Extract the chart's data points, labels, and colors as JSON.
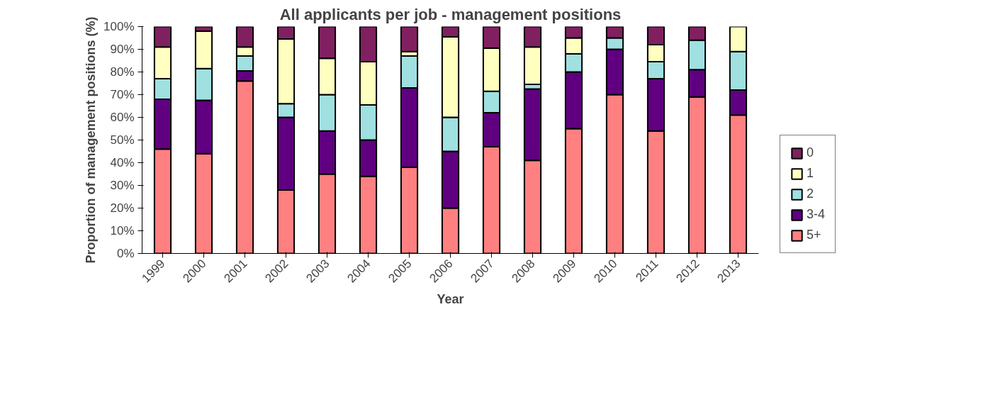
{
  "chart_data": {
    "type": "bar",
    "stacked": true,
    "title": "All applicants per job - management positions",
    "xlabel": "Year",
    "ylabel": "Proportion of management positions (%)",
    "categories": [
      "1999",
      "2000",
      "2001",
      "2002",
      "2003",
      "2004",
      "2005",
      "2006",
      "2007",
      "2008",
      "2009",
      "2010",
      "2011",
      "2012",
      "2013"
    ],
    "series": [
      {
        "name": "5+",
        "color": "#ff8080",
        "values": [
          46,
          44,
          76,
          28,
          35,
          34,
          38,
          20,
          47,
          41,
          55,
          70,
          54,
          69,
          61
        ]
      },
      {
        "name": "3-4",
        "color": "#600080",
        "values": [
          22,
          23.5,
          4.5,
          32,
          19,
          16,
          35,
          25,
          15,
          31.5,
          25,
          20,
          23,
          12,
          11
        ]
      },
      {
        "name": "2",
        "color": "#a0e0e0",
        "values": [
          9,
          14,
          6.5,
          6,
          16,
          15.5,
          14,
          15,
          9.5,
          2,
          8,
          5,
          7.5,
          13,
          17
        ]
      },
      {
        "name": "1",
        "color": "#ffffc0",
        "values": [
          14,
          16.5,
          4,
          28.5,
          16,
          19,
          2,
          35.5,
          19,
          16.5,
          7,
          0,
          7.5,
          0,
          11
        ]
      },
      {
        "name": "0",
        "color": "#802060",
        "values": [
          9,
          2,
          9,
          5.5,
          14,
          15.5,
          11,
          4.5,
          9.5,
          9,
          5,
          5,
          8,
          6,
          0
        ]
      }
    ],
    "ylim": [
      0,
      100
    ],
    "yticks": [
      {
        "value": 0,
        "label": "0%"
      },
      {
        "value": 10,
        "label": "10%"
      },
      {
        "value": 20,
        "label": "20%"
      },
      {
        "value": 30,
        "label": "30%"
      },
      {
        "value": 40,
        "label": "40%"
      },
      {
        "value": 50,
        "label": "50%"
      },
      {
        "value": 60,
        "label": "60%"
      },
      {
        "value": 70,
        "label": "70%"
      },
      {
        "value": 80,
        "label": "80%"
      },
      {
        "value": 90,
        "label": "90%"
      },
      {
        "value": 100,
        "label": "100%"
      }
    ],
    "grid": false,
    "legend": "right"
  }
}
